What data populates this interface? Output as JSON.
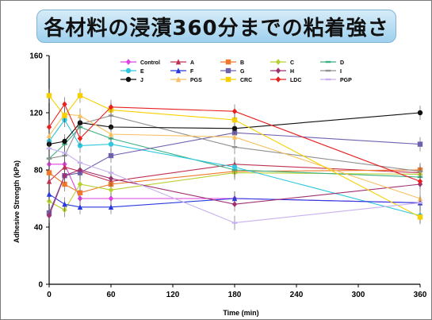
{
  "title": "各材料の浸漬360分までの粘着強さ",
  "chart_data": {
    "type": "line",
    "xlabel": "Time (min)",
    "ylabel": "Adhesive Strength (kPa)",
    "xlim": [
      0,
      360
    ],
    "ylim": [
      0,
      160
    ],
    "xticks": [
      0,
      60,
      120,
      180,
      240,
      300,
      360
    ],
    "yticks": [
      0,
      40,
      80,
      120,
      160
    ],
    "grid": false,
    "legend_position": "top",
    "x": [
      0,
      15,
      30,
      60,
      180,
      360
    ],
    "series": [
      {
        "name": "Control",
        "color": "#e040e0",
        "marker": "diamond",
        "values": [
          84,
          84,
          60,
          60,
          60,
          57
        ]
      },
      {
        "name": "A",
        "color": "#c03050",
        "marker": "triangle",
        "values": [
          72,
          82,
          79,
          72,
          84,
          78
        ]
      },
      {
        "name": "B",
        "color": "#f07828",
        "marker": "square",
        "values": [
          78,
          70,
          64,
          70,
          79,
          80
        ]
      },
      {
        "name": "C",
        "color": "#b8d030",
        "marker": "diamond",
        "values": [
          58,
          52,
          70,
          66,
          78,
          77
        ]
      },
      {
        "name": "D",
        "color": "#3ab080",
        "marker": "dash",
        "values": [
          88,
          98,
          110,
          102,
          80,
          75
        ]
      },
      {
        "name": "E",
        "color": "#30c8e0",
        "marker": "circle",
        "values": [
          100,
          115,
          97,
          98,
          82,
          48
        ]
      },
      {
        "name": "F",
        "color": "#2838e0",
        "marker": "triangle",
        "values": [
          63,
          56,
          54,
          54,
          60,
          57
        ]
      },
      {
        "name": "G",
        "color": "#7060b0",
        "marker": "square",
        "values": [
          50,
          76,
          78,
          90,
          106,
          98
        ]
      },
      {
        "name": "H",
        "color": "#a03070",
        "marker": "diamond",
        "values": [
          48,
          76,
          80,
          74,
          56,
          70
        ]
      },
      {
        "name": "I",
        "color": "#909090",
        "marker": "dash",
        "values": [
          88,
          90,
          112,
          118,
          96,
          79
        ]
      },
      {
        "name": "J",
        "color": "#101010",
        "marker": "circle",
        "values": [
          98,
          100,
          113,
          110,
          109,
          120
        ]
      },
      {
        "name": "PGS",
        "color": "#f8c060",
        "marker": "triangle",
        "values": [
          104,
          119,
          118,
          105,
          103,
          60
        ]
      },
      {
        "name": "CRC",
        "color": "#f8d000",
        "marker": "square",
        "values": [
          132,
          118,
          132,
          122,
          115,
          47
        ]
      },
      {
        "name": "LDC",
        "color": "#e82020",
        "marker": "diamond",
        "values": [
          110,
          126,
          102,
          124,
          121,
          72
        ]
      },
      {
        "name": "PGP",
        "color": "#c8b0f0",
        "marker": "dash",
        "values": [
          95,
          92,
          85,
          78,
          43,
          57
        ]
      }
    ]
  }
}
